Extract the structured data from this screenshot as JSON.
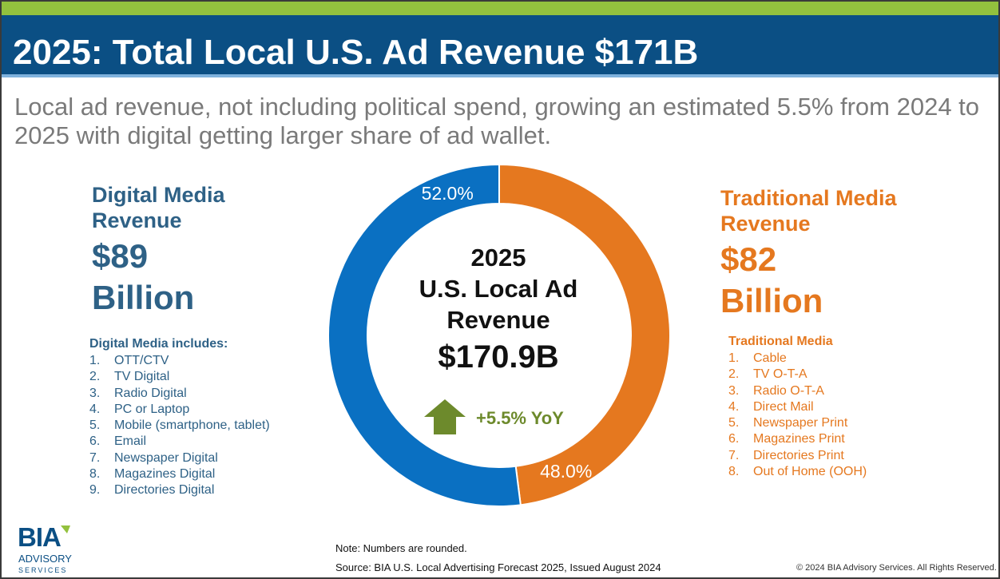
{
  "header": {
    "title": "2025: Total Local U.S. Ad Revenue $171B",
    "subtitle": "Local ad revenue, not including political spend, growing an estimated 5.5% from 2024 to 2025 with digital getting larger share of ad wallet."
  },
  "digital": {
    "heading": "Digital Media Revenue",
    "amount_line1": "$89",
    "amount_line2": "Billion",
    "list_heading": "Digital Media includes:",
    "items": [
      "OTT/CTV",
      "TV Digital",
      "Radio Digital",
      "PC or Laptop",
      "Mobile (smartphone, tablet)",
      "Email",
      "Newspaper Digital",
      "Magazines Digital",
      "Directories Digital"
    ]
  },
  "traditional": {
    "heading": "Traditional Media Revenue",
    "amount_line1": "$82",
    "amount_line2": "Billion",
    "list_heading": "Traditional Media",
    "items": [
      "Cable",
      "TV O-T-A",
      "Radio O-T-A",
      "Direct Mail",
      "Newspaper Print",
      "Magazines Print",
      "Directories Print",
      "Out of Home (OOH)"
    ]
  },
  "center": {
    "line1": "2025",
    "line2": "U.S. Local Ad",
    "line3": "Revenue",
    "total": "$170.9B",
    "growth": "+5.5% YoY"
  },
  "chart_data": {
    "type": "pie",
    "donut": true,
    "categories": [
      "Traditional Media",
      "Digital Media"
    ],
    "values": [
      48.0,
      52.0
    ],
    "labels": [
      "48.0%",
      "52.0%"
    ],
    "colors": [
      "#e5781f",
      "#0a70c2"
    ]
  },
  "colors": {
    "title_band": "#0b4f84",
    "accent_band": "#93c13e",
    "digital": "#2e6186",
    "traditional": "#e5781f",
    "growth": "#6d8a2c"
  },
  "icons": {
    "growth": "arrow-up-icon"
  },
  "footer": {
    "note": "Note: Numbers are rounded.",
    "source": "Source: BIA U.S. Local Advertising Forecast 2025, Issued August 2024",
    "copyright": "© 2024 BIA Advisory Services. All Rights Reserved.",
    "logo_line1": "BIA",
    "logo_line2": "ADVISORY",
    "logo_line3": "SERVICES"
  }
}
